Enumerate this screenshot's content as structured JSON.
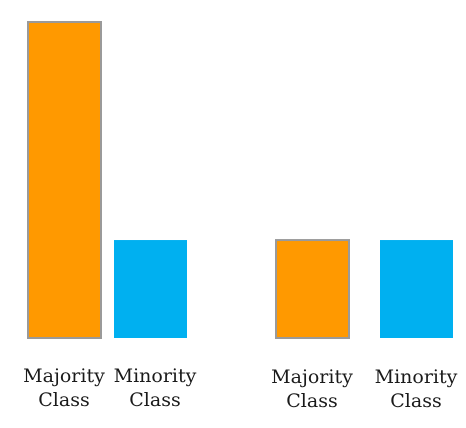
{
  "chart_data": [
    {
      "type": "bar",
      "categories": [
        "Majority\nClass",
        "Minority\nClass"
      ],
      "values": [
        100,
        31
      ],
      "colors": [
        "#ff9900",
        "#00b0f0"
      ],
      "title": "",
      "xlabel": "",
      "ylabel": "",
      "ylim": [
        0,
        100
      ],
      "grid": false,
      "legend": "none"
    },
    {
      "type": "bar",
      "categories": [
        "Majority\nClass",
        "Minority\nClass"
      ],
      "values": [
        31,
        31
      ],
      "colors": [
        "#ff9900",
        "#00b0f0"
      ],
      "title": "",
      "xlabel": "",
      "ylabel": "",
      "ylim": [
        0,
        100
      ],
      "grid": false,
      "legend": "none"
    }
  ]
}
